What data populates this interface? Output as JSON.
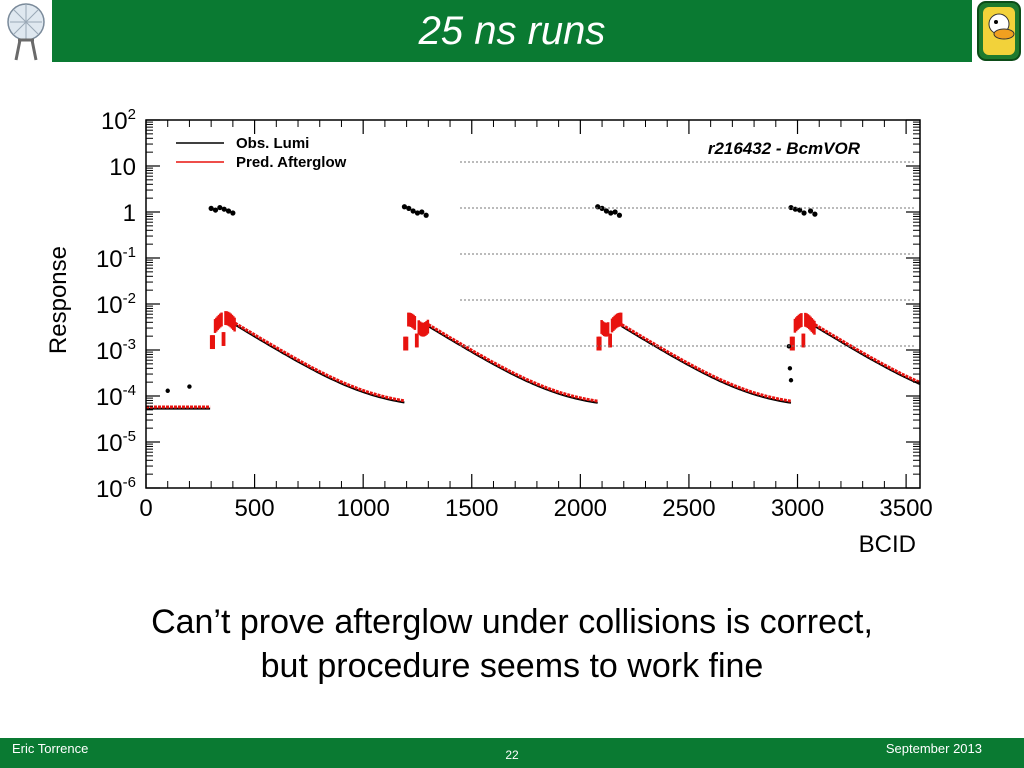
{
  "slide": {
    "title": "25 ns runs",
    "caption_line1": "Can’t prove afterglow under collisions is correct,",
    "caption_line2": "but procedure seems to work fine"
  },
  "footer": {
    "author": "Eric Torrence",
    "page": "22",
    "date": "September 2013"
  },
  "colors": {
    "header_green": "#0a7a32",
    "obs_color": "#000000",
    "pred_color": "#e8130f"
  },
  "chart_data": {
    "type": "scatter",
    "xlabel": "BCID",
    "ylabel": "Response",
    "annotation": "r216432 - BcmVOR",
    "xlim": [
      0,
      3564
    ],
    "ylim": [
      1e-06,
      100
    ],
    "yscale": "log",
    "grid": false,
    "legend_position": "top-left",
    "x_ticks": [
      0,
      500,
      1000,
      1500,
      2000,
      2500,
      3000,
      3500
    ],
    "y_ticks": [
      {
        "value": 1e-06,
        "base": "10",
        "exp": "-6"
      },
      {
        "value": 1e-05,
        "base": "10",
        "exp": "-5"
      },
      {
        "value": 0.0001,
        "base": "10",
        "exp": "-4"
      },
      {
        "value": 0.001,
        "base": "10",
        "exp": "-3"
      },
      {
        "value": 0.01,
        "base": "10",
        "exp": "-2"
      },
      {
        "value": 0.1,
        "base": "10",
        "exp": "-1"
      },
      {
        "value": 1,
        "base": "1",
        "exp": ""
      },
      {
        "value": 10,
        "base": "10",
        "exp": ""
      },
      {
        "value": 100,
        "base": "10",
        "exp": "2"
      }
    ],
    "series": [
      {
        "name": "Obs. Lumi",
        "color": "#000000",
        "bunch_trains": [
          {
            "x": 300,
            "y": 1.2
          },
          {
            "x": 320,
            "y": 1.1
          },
          {
            "x": 340,
            "y": 1.25
          },
          {
            "x": 360,
            "y": 1.15
          },
          {
            "x": 380,
            "y": 1.05
          },
          {
            "x": 400,
            "y": 0.95
          },
          {
            "x": 1190,
            "y": 1.3
          },
          {
            "x": 1210,
            "y": 1.2
          },
          {
            "x": 1230,
            "y": 1.05
          },
          {
            "x": 1250,
            "y": 0.95
          },
          {
            "x": 1270,
            "y": 1.0
          },
          {
            "x": 1290,
            "y": 0.85
          },
          {
            "x": 2080,
            "y": 1.3
          },
          {
            "x": 2100,
            "y": 1.2
          },
          {
            "x": 2120,
            "y": 1.05
          },
          {
            "x": 2140,
            "y": 0.95
          },
          {
            "x": 2160,
            "y": 1.0
          },
          {
            "x": 2180,
            "y": 0.85
          },
          {
            "x": 2970,
            "y": 1.25
          },
          {
            "x": 2990,
            "y": 1.15
          },
          {
            "x": 3010,
            "y": 1.1
          },
          {
            "x": 3030,
            "y": 0.95
          },
          {
            "x": 3060,
            "y": 1.05
          },
          {
            "x": 3080,
            "y": 0.9
          }
        ],
        "isolated": [
          {
            "x": 100,
            "y": 0.00013
          },
          {
            "x": 200,
            "y": 0.00016
          },
          {
            "x": 2960,
            "y": 0.0012
          },
          {
            "x": 2965,
            "y": 0.0004
          },
          {
            "x": 2970,
            "y": 0.00022
          }
        ]
      },
      {
        "name": "Pred. Afterglow",
        "color": "#e8130f",
        "baseline": 5.5e-05,
        "trains": [
          {
            "start": 300,
            "end": 410,
            "peak": 0.007,
            "decay_end": 1190
          },
          {
            "start": 1190,
            "end": 1300,
            "peak": 0.0065,
            "decay_end": 2080
          },
          {
            "start": 2080,
            "end": 2190,
            "peak": 0.0065,
            "decay_end": 2970
          },
          {
            "start": 2970,
            "end": 3080,
            "peak": 0.0065,
            "decay_end": 3564
          }
        ]
      }
    ]
  }
}
